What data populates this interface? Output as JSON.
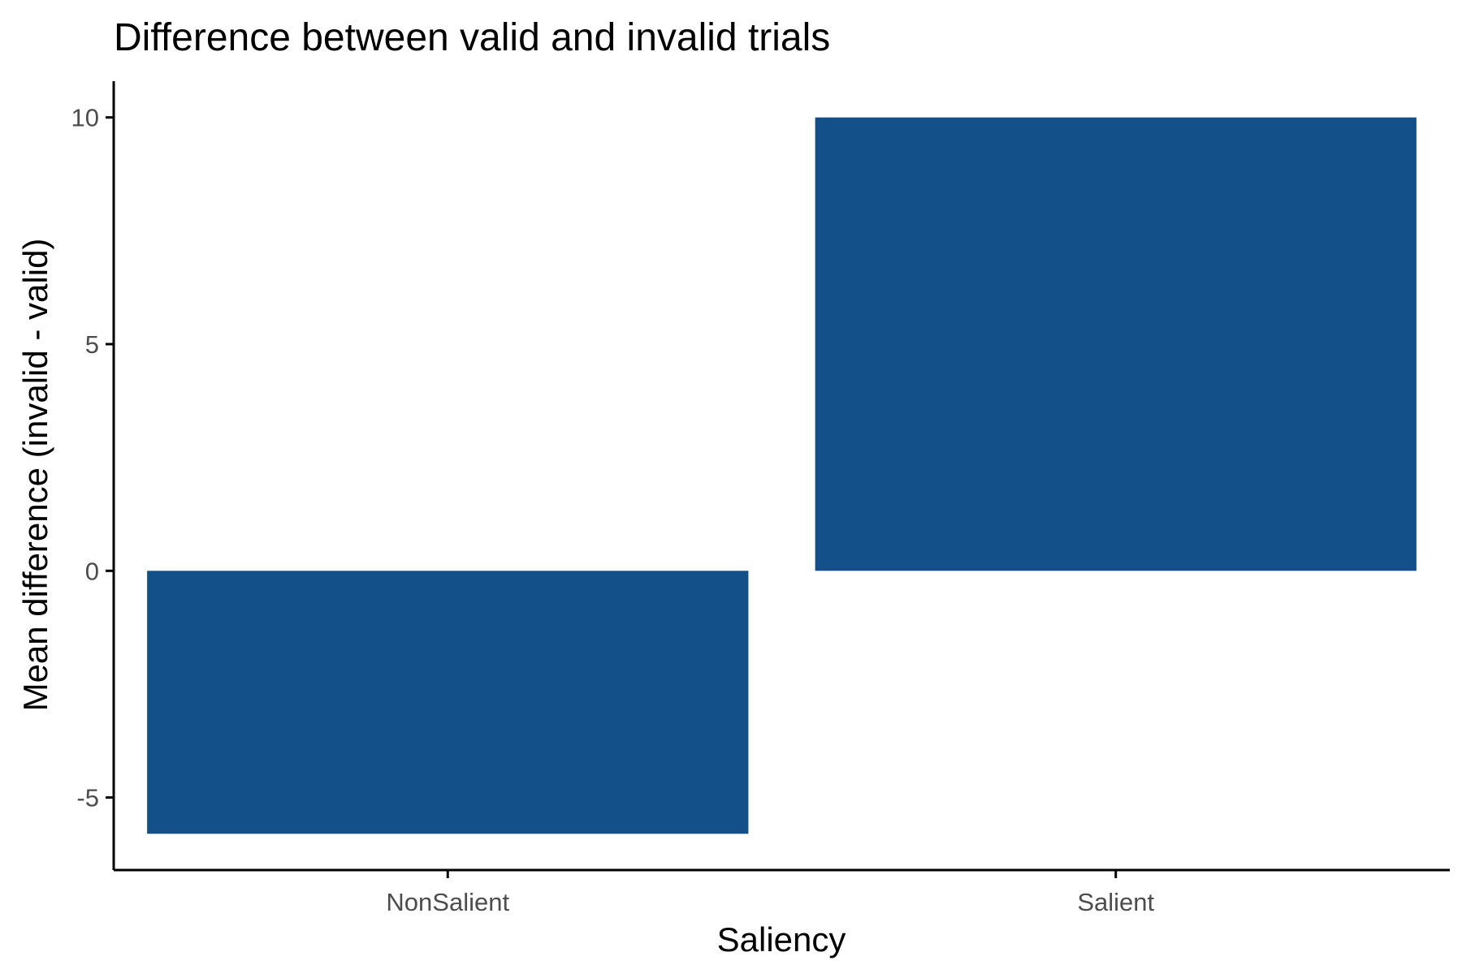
{
  "chart_data": {
    "type": "bar",
    "title": "Difference between valid and invalid trials",
    "xlabel": "Saliency",
    "ylabel": "Mean difference (invalid - valid)",
    "categories": [
      "NonSalient",
      "Salient"
    ],
    "values": [
      -5.8,
      10.0
    ],
    "yticks": [
      -5,
      0,
      5,
      10
    ],
    "ytick_labels": [
      "-5",
      "0",
      "5",
      "10"
    ],
    "ylim": [
      -6.6,
      10.8
    ],
    "grid": false,
    "legend": "none",
    "bar_color": "#134f89"
  }
}
